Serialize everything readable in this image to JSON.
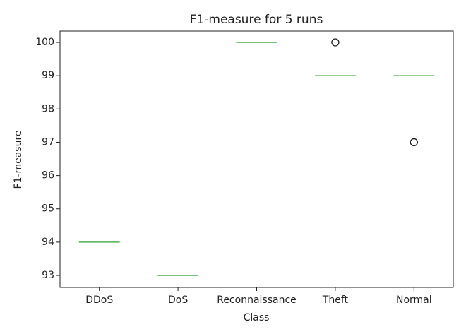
{
  "chart_data": {
    "type": "box",
    "title": "F1-measure for 5 runs",
    "x_label": "Class",
    "y_label": "F1-measure",
    "categories": [
      "DDoS",
      "DoS",
      "Reconnaissance",
      "Theft",
      "Normal"
    ],
    "medians": [
      94,
      93,
      100,
      99,
      99
    ],
    "outliers": [
      [],
      [],
      [],
      [
        100
      ],
      [
        97
      ]
    ],
    "color": "#2ca02c",
    "ylim": [
      92.64,
      100.34
    ],
    "yticks": [
      93,
      94,
      95,
      96,
      97,
      98,
      99,
      100
    ],
    "grid": false
  }
}
